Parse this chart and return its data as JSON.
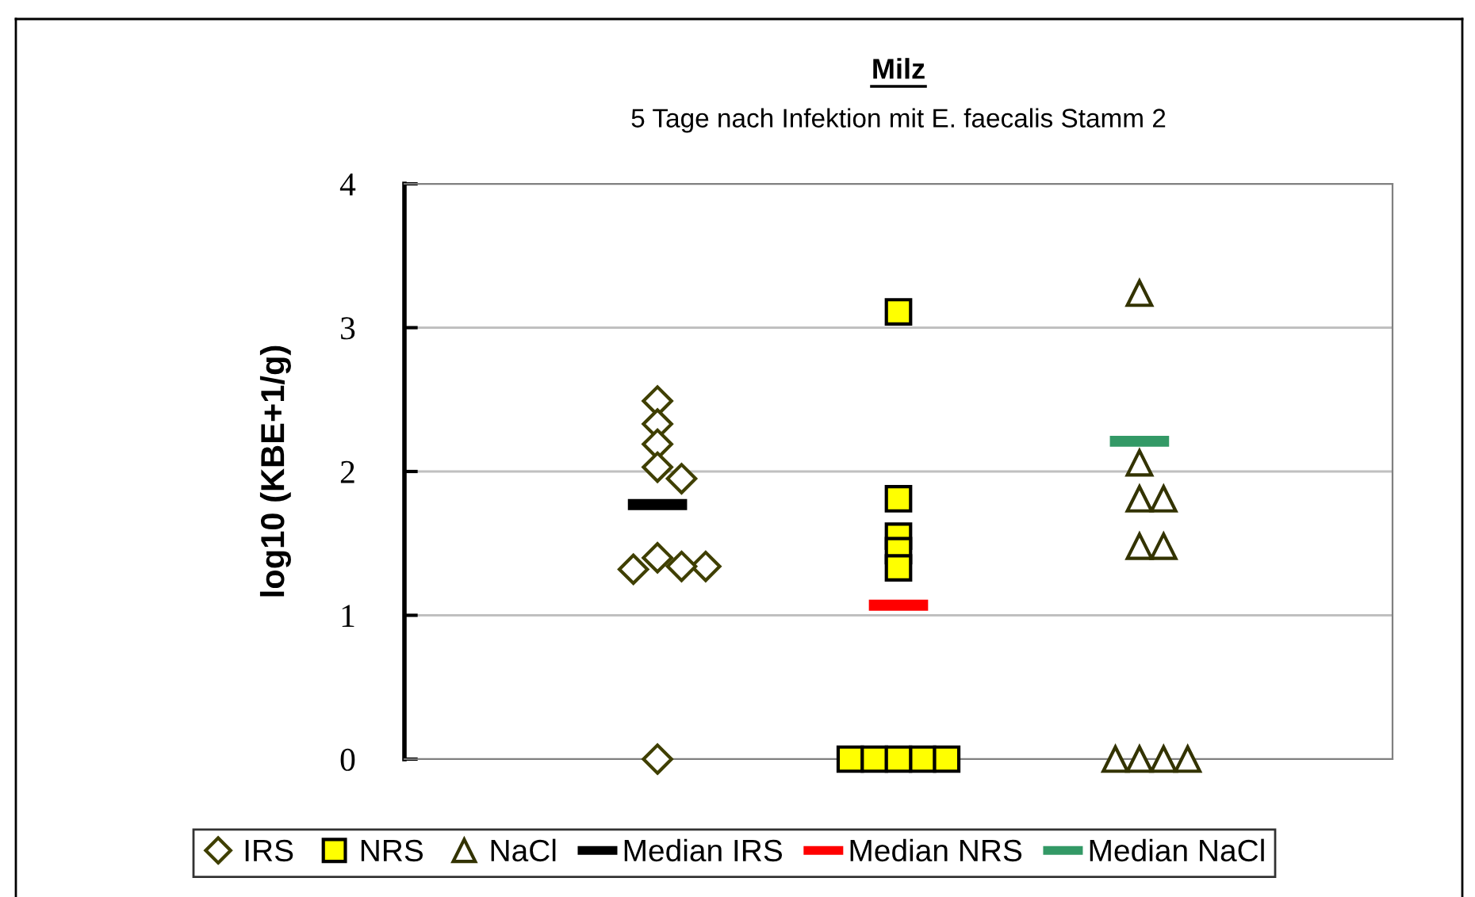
{
  "chart_data": {
    "type": "scatter",
    "title": "Milz",
    "subtitle": "5 Tage nach Infektion mit E. faecalis Stamm 2",
    "ylabel": "log10 (KBE+1/g)",
    "categories": [
      null,
      null,
      null,
      null,
      null,
      null,
      null,
      null,
      null,
      null,
      null,
      null,
      null,
      null,
      null,
      null,
      null,
      null,
      null,
      null,
      null,
      null,
      null,
      null,
      null,
      null,
      null,
      null,
      null,
      null,
      null,
      null,
      null,
      null,
      null,
      null,
      null,
      null,
      null,
      null,
      null
    ],
    "ylim": [
      0,
      4
    ],
    "yticks": [
      0,
      1,
      2,
      3,
      4
    ],
    "tick_labels": "y",
    "grid": "y",
    "legend": "bottom",
    "series": [
      {
        "name": "IRS",
        "marker": "diamond",
        "color": "#3f3f00",
        "values": [
          null,
          null,
          null,
          null,
          null,
          null,
          null,
          null,
          null,
          1.32,
          2.49,
          1.95,
          1.34,
          null,
          null,
          null,
          null,
          null,
          null,
          null,
          null,
          null,
          null,
          null,
          null,
          null,
          null,
          null,
          null,
          null,
          null,
          null,
          null,
          null,
          null,
          null,
          null,
          null,
          null,
          null,
          null
        ]
      },
      {
        "name": "NRS",
        "marker": "square",
        "color": "#ffff00",
        "values": [
          null,
          null,
          null,
          null,
          null,
          null,
          null,
          null,
          null,
          null,
          null,
          null,
          null,
          null,
          null,
          null,
          null,
          null,
          0,
          0,
          3.11,
          0,
          0,
          null,
          null,
          null,
          null,
          null,
          null,
          null,
          null,
          null,
          null,
          null,
          null,
          null,
          null,
          null,
          null,
          null,
          null
        ]
      },
      {
        "name": "NaCl",
        "marker": "triangle",
        "color": "#333300",
        "values": [
          null,
          null,
          null,
          null,
          null,
          null,
          null,
          null,
          null,
          null,
          null,
          null,
          null,
          null,
          null,
          null,
          null,
          null,
          null,
          null,
          null,
          null,
          null,
          null,
          null,
          null,
          null,
          null,
          null,
          0,
          3.24,
          1.81,
          0,
          null,
          null,
          null,
          null,
          null,
          null,
          null,
          null
        ]
      },
      {
        "name": "Median IRS",
        "type": "line",
        "color": "#000000",
        "values": [
          null,
          null,
          null,
          null,
          null,
          null,
          null,
          null,
          null,
          1.77,
          1.77,
          1.77,
          null,
          null,
          null,
          null,
          null,
          null,
          null,
          null,
          null,
          null,
          null,
          null,
          null,
          null,
          null,
          null,
          null,
          null,
          null,
          null,
          null,
          null,
          null,
          null,
          null,
          null,
          null,
          null,
          null
        ]
      },
      {
        "name": "Median NRS",
        "type": "line",
        "color": "#ff0000",
        "values": [
          null,
          null,
          null,
          null,
          null,
          null,
          null,
          null,
          null,
          null,
          null,
          null,
          null,
          null,
          null,
          null,
          null,
          null,
          null,
          1.07,
          1.07,
          1.07,
          null,
          null,
          null,
          null,
          null,
          null,
          null,
          null,
          null,
          null,
          null,
          null,
          null,
          null,
          null,
          null,
          null,
          null,
          null
        ]
      },
      {
        "name": "Median NaCl",
        "type": "line",
        "color": "#339966",
        "values": [
          null,
          null,
          null,
          null,
          null,
          null,
          null,
          null,
          null,
          null,
          null,
          null,
          null,
          null,
          null,
          null,
          null,
          null,
          null,
          null,
          null,
          null,
          null,
          null,
          null,
          null,
          null,
          null,
          null,
          2.21,
          2.21,
          2.21,
          null,
          null,
          null,
          null,
          null,
          null,
          null,
          null,
          null
        ]
      },
      {
        "marker": "diamond",
        "color": "#3f3f00",
        "values": [
          null,
          null,
          null,
          null,
          null,
          null,
          null,
          null,
          null,
          null,
          2.33,
          1.34,
          null,
          null,
          null,
          null,
          null,
          null,
          null,
          null,
          null,
          null,
          null,
          null,
          null,
          null,
          null,
          null,
          null,
          null,
          null,
          null,
          null,
          null,
          null,
          null,
          null,
          null,
          null,
          null,
          null
        ]
      },
      {
        "marker": "diamond",
        "color": "#3f3f00",
        "values": [
          null,
          null,
          null,
          null,
          null,
          null,
          null,
          null,
          null,
          null,
          2.19,
          null,
          null,
          null,
          null,
          null,
          null,
          null,
          null,
          null,
          null,
          null,
          null,
          null,
          null,
          null,
          null,
          null,
          null,
          null,
          null,
          null,
          null,
          null,
          null,
          null,
          null,
          null,
          null,
          null,
          null
        ]
      },
      {
        "marker": "diamond",
        "color": "#3f3f00",
        "values": [
          null,
          null,
          null,
          null,
          null,
          null,
          null,
          null,
          null,
          null,
          2.03,
          null,
          null,
          null,
          null,
          null,
          null,
          null,
          null,
          null,
          null,
          null,
          null,
          null,
          null,
          null,
          null,
          null,
          null,
          null,
          null,
          null,
          null,
          null,
          null,
          null,
          null,
          null,
          null,
          null,
          null
        ]
      },
      {
        "marker": "diamond",
        "color": "#3f3f00",
        "values": [
          null,
          null,
          null,
          null,
          null,
          null,
          null,
          null,
          null,
          null,
          1.4,
          null,
          null,
          null,
          null,
          null,
          null,
          null,
          null,
          null,
          null,
          null,
          null,
          null,
          null,
          null,
          null,
          null,
          null,
          null,
          null,
          null,
          null,
          null,
          null,
          null,
          null,
          null,
          null,
          null,
          null
        ]
      },
      {
        "marker": "diamond",
        "color": "#3f3f00",
        "values": [
          null,
          null,
          null,
          null,
          null,
          null,
          null,
          null,
          null,
          null,
          0,
          null,
          null,
          null,
          null,
          null,
          null,
          null,
          null,
          null,
          null,
          null,
          null,
          null,
          null,
          null,
          null,
          null,
          null,
          null,
          null,
          null,
          null,
          null,
          null,
          null,
          null,
          null,
          null,
          null,
          null
        ]
      },
      {
        "marker": "square",
        "color": "#ffff00",
        "values": [
          null,
          null,
          null,
          null,
          null,
          null,
          null,
          null,
          null,
          null,
          null,
          null,
          null,
          null,
          null,
          null,
          null,
          null,
          null,
          null,
          1.81,
          null,
          null,
          null,
          null,
          null,
          null,
          null,
          null,
          null,
          null,
          null,
          null,
          null,
          null,
          null,
          null,
          null,
          null,
          null,
          null
        ]
      },
      {
        "marker": "square",
        "color": "#ffff00",
        "values": [
          null,
          null,
          null,
          null,
          null,
          null,
          null,
          null,
          null,
          null,
          null,
          null,
          null,
          null,
          null,
          null,
          null,
          null,
          null,
          null,
          1.55,
          null,
          null,
          null,
          null,
          null,
          null,
          null,
          null,
          null,
          null,
          null,
          null,
          null,
          null,
          null,
          null,
          null,
          null,
          null,
          null
        ]
      },
      {
        "marker": "square",
        "color": "#ffff00",
        "values": [
          null,
          null,
          null,
          null,
          null,
          null,
          null,
          null,
          null,
          null,
          null,
          null,
          null,
          null,
          null,
          null,
          null,
          null,
          null,
          null,
          1.45,
          null,
          null,
          null,
          null,
          null,
          null,
          null,
          null,
          null,
          null,
          null,
          null,
          null,
          null,
          null,
          null,
          null,
          null,
          null,
          null
        ]
      },
      {
        "marker": "square",
        "color": "#ffff00",
        "values": [
          null,
          null,
          null,
          null,
          null,
          null,
          null,
          null,
          null,
          null,
          null,
          null,
          null,
          null,
          null,
          null,
          null,
          null,
          null,
          null,
          1.33,
          null,
          null,
          null,
          null,
          null,
          null,
          null,
          null,
          null,
          null,
          null,
          null,
          null,
          null,
          null,
          null,
          null,
          null,
          null,
          null
        ]
      },
      {
        "marker": "square",
        "color": "#ffff00",
        "values": [
          null,
          null,
          null,
          null,
          null,
          null,
          null,
          null,
          null,
          null,
          null,
          null,
          null,
          null,
          null,
          null,
          null,
          null,
          null,
          null,
          0,
          null,
          null,
          null,
          null,
          null,
          null,
          null,
          null,
          null,
          null,
          null,
          null,
          null,
          null,
          null,
          null,
          null,
          null,
          null,
          null
        ]
      },
      {
        "marker": "triangle",
        "color": "#333300",
        "values": [
          null,
          null,
          null,
          null,
          null,
          null,
          null,
          null,
          null,
          null,
          null,
          null,
          null,
          null,
          null,
          null,
          null,
          null,
          null,
          null,
          null,
          null,
          null,
          null,
          null,
          null,
          null,
          null,
          null,
          null,
          2.06,
          1.48,
          null,
          null,
          null,
          null,
          null,
          null,
          null,
          null,
          null
        ]
      },
      {
        "marker": "triangle",
        "color": "#333300",
        "values": [
          null,
          null,
          null,
          null,
          null,
          null,
          null,
          null,
          null,
          null,
          null,
          null,
          null,
          null,
          null,
          null,
          null,
          null,
          null,
          null,
          null,
          null,
          null,
          null,
          null,
          null,
          null,
          null,
          null,
          null,
          1.81,
          0,
          null,
          null,
          null,
          null,
          null,
          null,
          null,
          null,
          null
        ]
      },
      {
        "marker": "triangle",
        "color": "#333300",
        "values": [
          null,
          null,
          null,
          null,
          null,
          null,
          null,
          null,
          null,
          null,
          null,
          null,
          null,
          null,
          null,
          null,
          null,
          null,
          null,
          null,
          null,
          null,
          null,
          null,
          null,
          null,
          null,
          null,
          null,
          null,
          1.48,
          null,
          null,
          null,
          null,
          null,
          null,
          null,
          null,
          null,
          null
        ]
      },
      {
        "marker": "triangle",
        "color": "#333300",
        "values": [
          null,
          null,
          null,
          null,
          null,
          null,
          null,
          null,
          null,
          null,
          null,
          null,
          null,
          null,
          null,
          null,
          null,
          null,
          null,
          null,
          null,
          null,
          null,
          null,
          null,
          null,
          null,
          null,
          null,
          null,
          0,
          null,
          null,
          null,
          null,
          null,
          null,
          null,
          null,
          null,
          null
        ]
      }
    ]
  }
}
